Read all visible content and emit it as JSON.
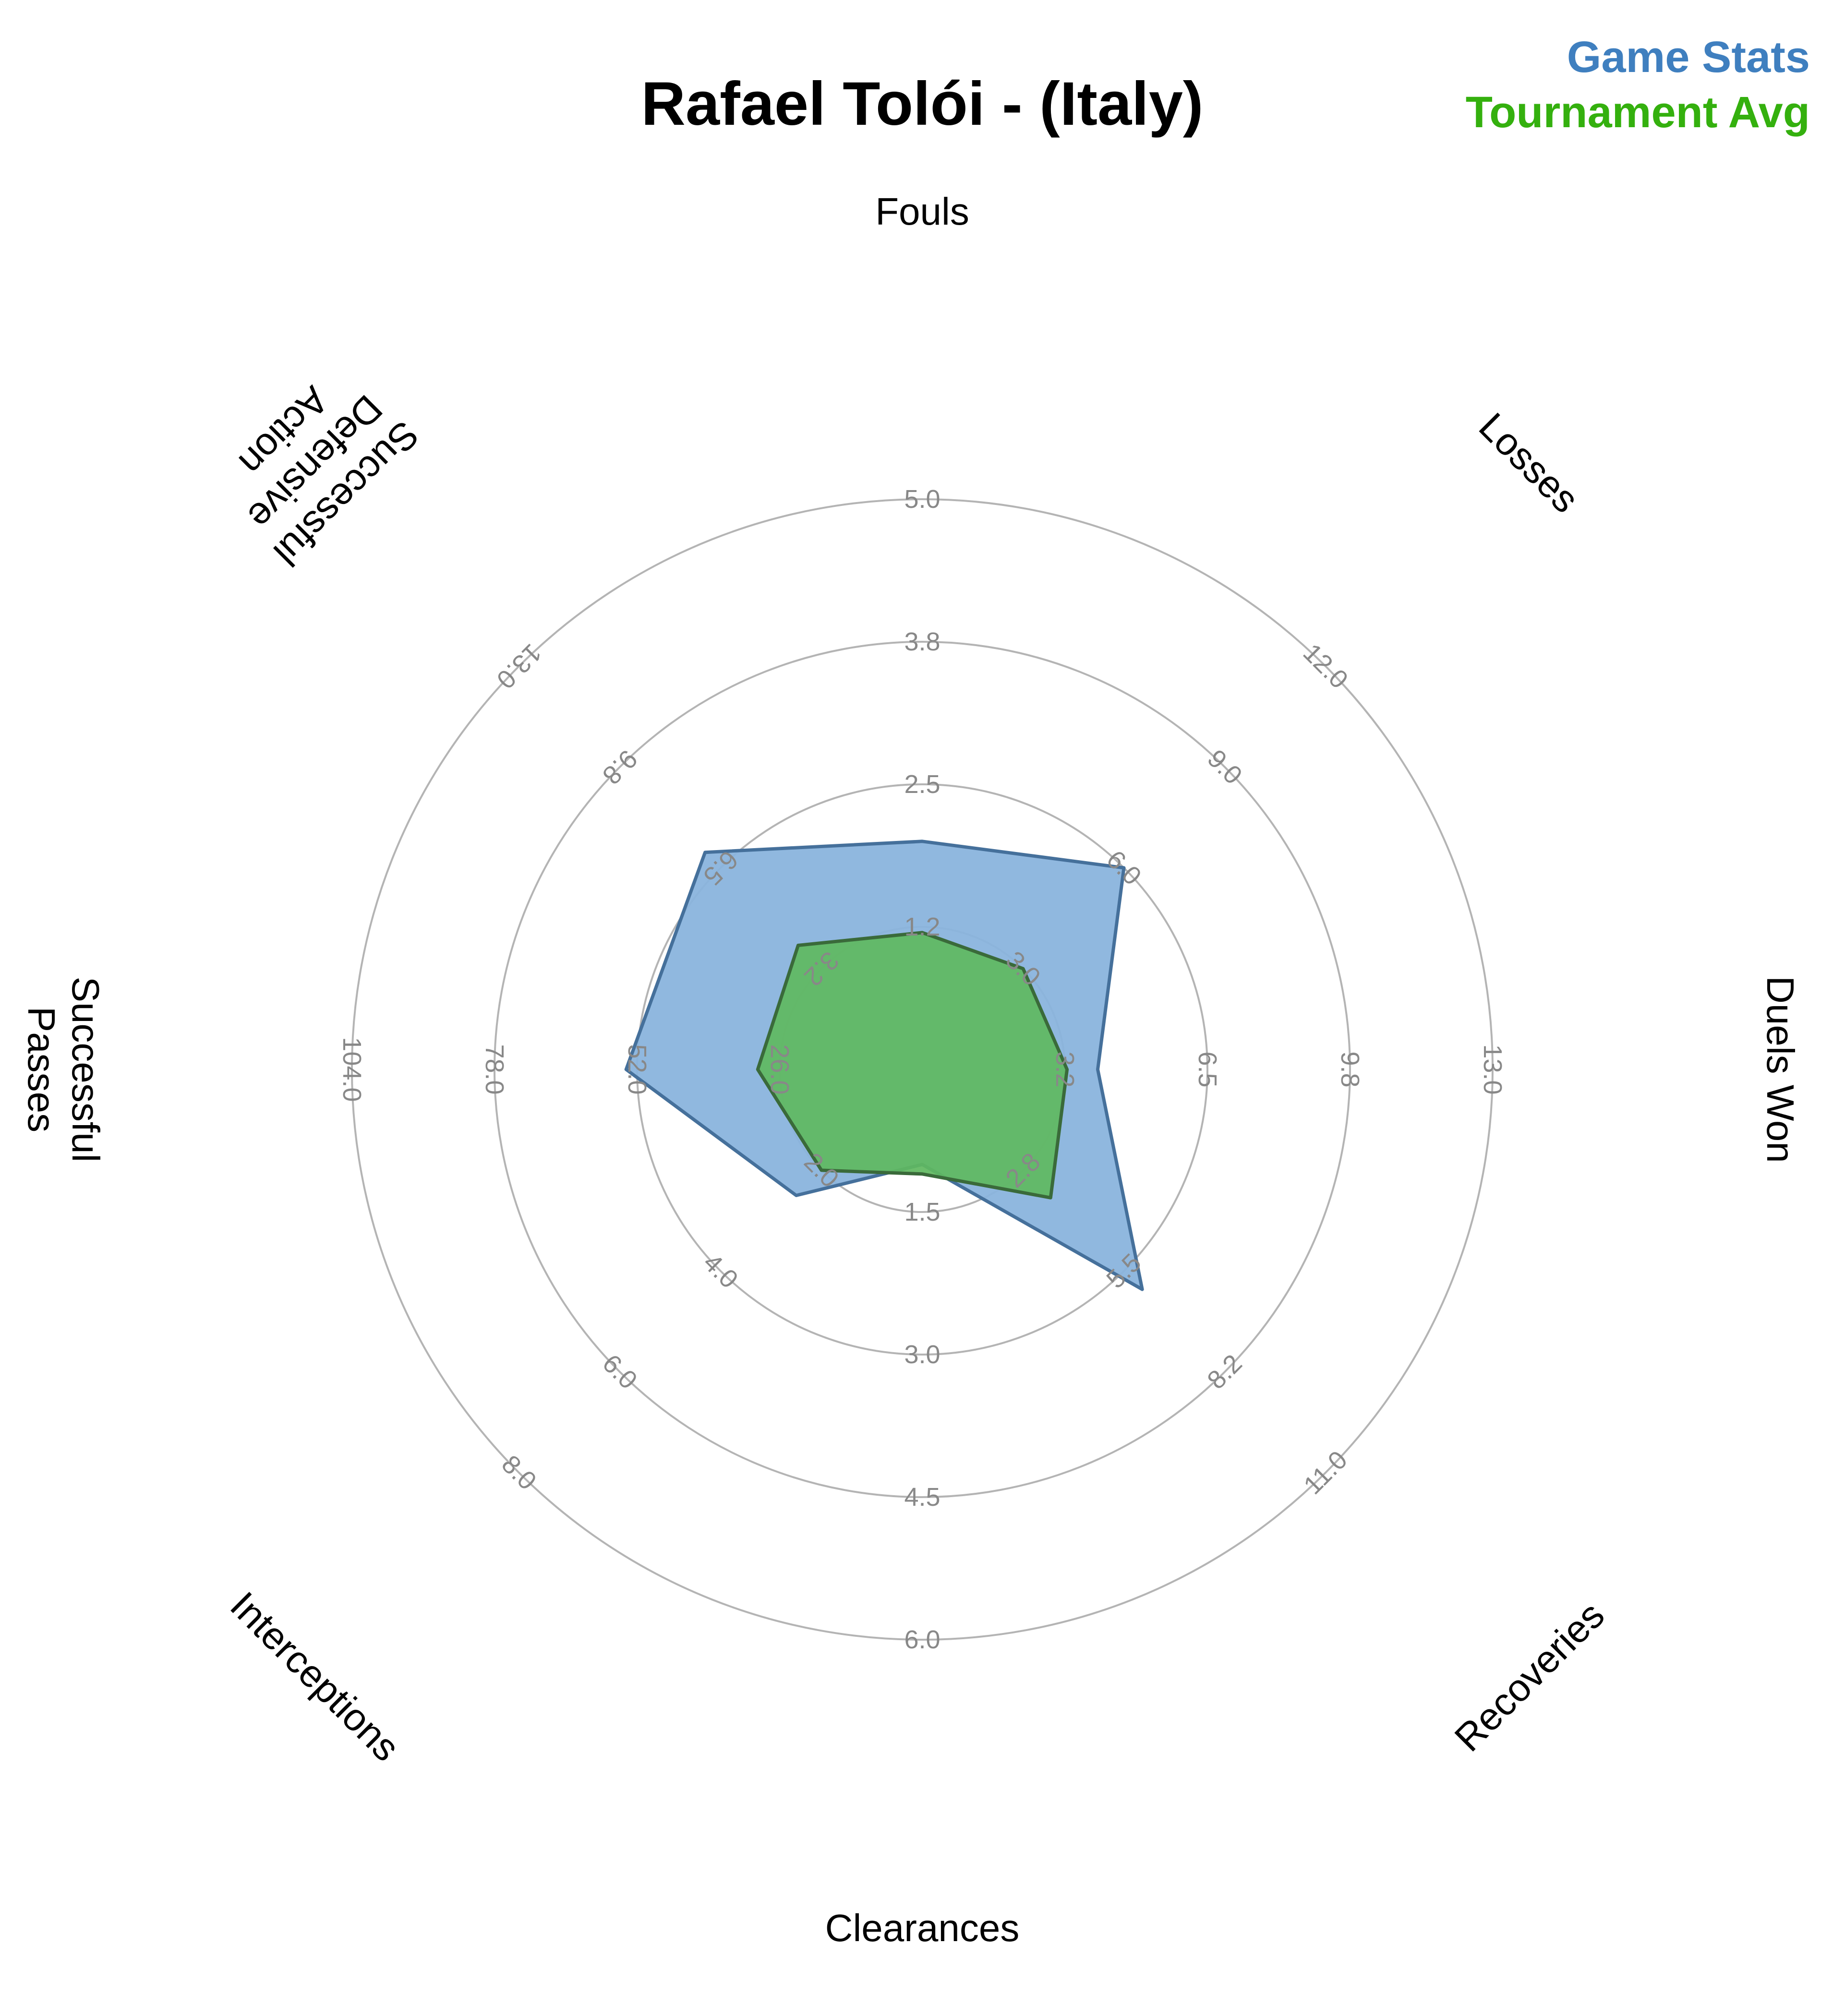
{
  "chart_data": {
    "type": "radar",
    "title": "Rafael Tolói - (Italy)",
    "legend_position": "top-right",
    "grid": true,
    "axes": [
      {
        "name": "Fouls",
        "max": 5.0,
        "ticks": [
          "1.2",
          "2.5",
          "3.8",
          "5.0"
        ]
      },
      {
        "name": "Losses",
        "max": 12.0,
        "ticks": [
          "3.0",
          "6.0",
          "9.0",
          "12.0"
        ]
      },
      {
        "name": "Duels Won",
        "max": 13.0,
        "ticks": [
          "3.2",
          "6.5",
          "9.8",
          "13.0"
        ]
      },
      {
        "name": "Recoveries",
        "max": 11.0,
        "ticks": [
          "2.8",
          "5.5",
          "8.2",
          "11.0"
        ]
      },
      {
        "name": "Clearances",
        "max": 6.0,
        "ticks": [
          "1.5",
          "3.0",
          "4.5",
          "6.0"
        ]
      },
      {
        "name": "Interceptions",
        "max": 8.0,
        "ticks": [
          "2.0",
          "4.0",
          "6.0",
          "8.0"
        ]
      },
      {
        "name": "Successful\nPasses",
        "max": 104.0,
        "ticks": [
          "26.0",
          "52.0",
          "78.0",
          "104.0"
        ]
      },
      {
        "name": "Successful\nDefensive\nAction",
        "max": 13.0,
        "ticks": [
          "3.2",
          "6.5",
          "9.8",
          "13.0"
        ]
      }
    ],
    "series": [
      {
        "name": "Game Stats",
        "color": "#3f7fbf",
        "fill": "#8ab4dd",
        "stroke": "#45709b",
        "values": [
          2.0,
          6.0,
          4.0,
          6.0,
          1.0,
          2.5,
          54.0,
          7.0
        ]
      },
      {
        "name": "Tournament Avg",
        "color": "#34b00e",
        "fill": "#5fb85f",
        "stroke": "#3a6a3a",
        "values": [
          1.2,
          3.0,
          3.3,
          3.5,
          1.1,
          2.0,
          30.0,
          4.0
        ]
      }
    ]
  }
}
